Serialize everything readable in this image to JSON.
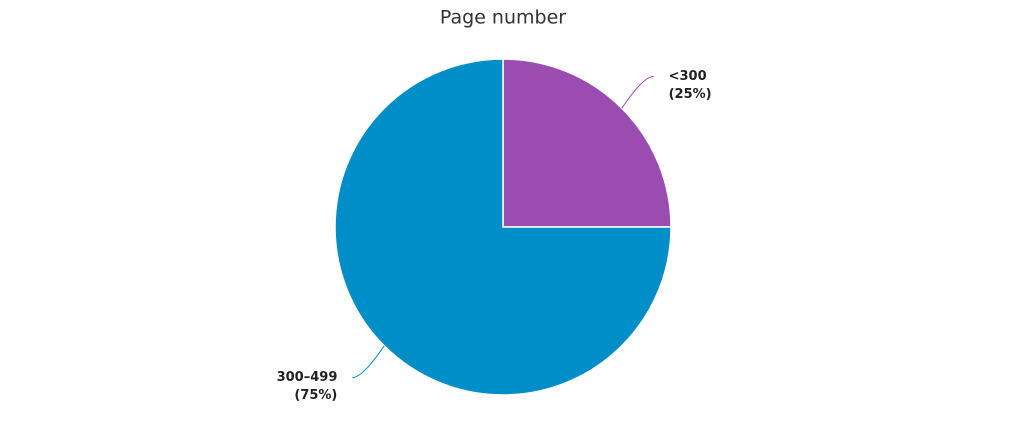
{
  "chart_data": {
    "type": "pie",
    "title": "Page number",
    "categories": [
      "<300",
      "300–499"
    ],
    "values": [
      25,
      75
    ],
    "value_labels": [
      "(25%)",
      "(75%)"
    ],
    "colors": [
      "#9b4cb1",
      "#008ec8"
    ]
  }
}
